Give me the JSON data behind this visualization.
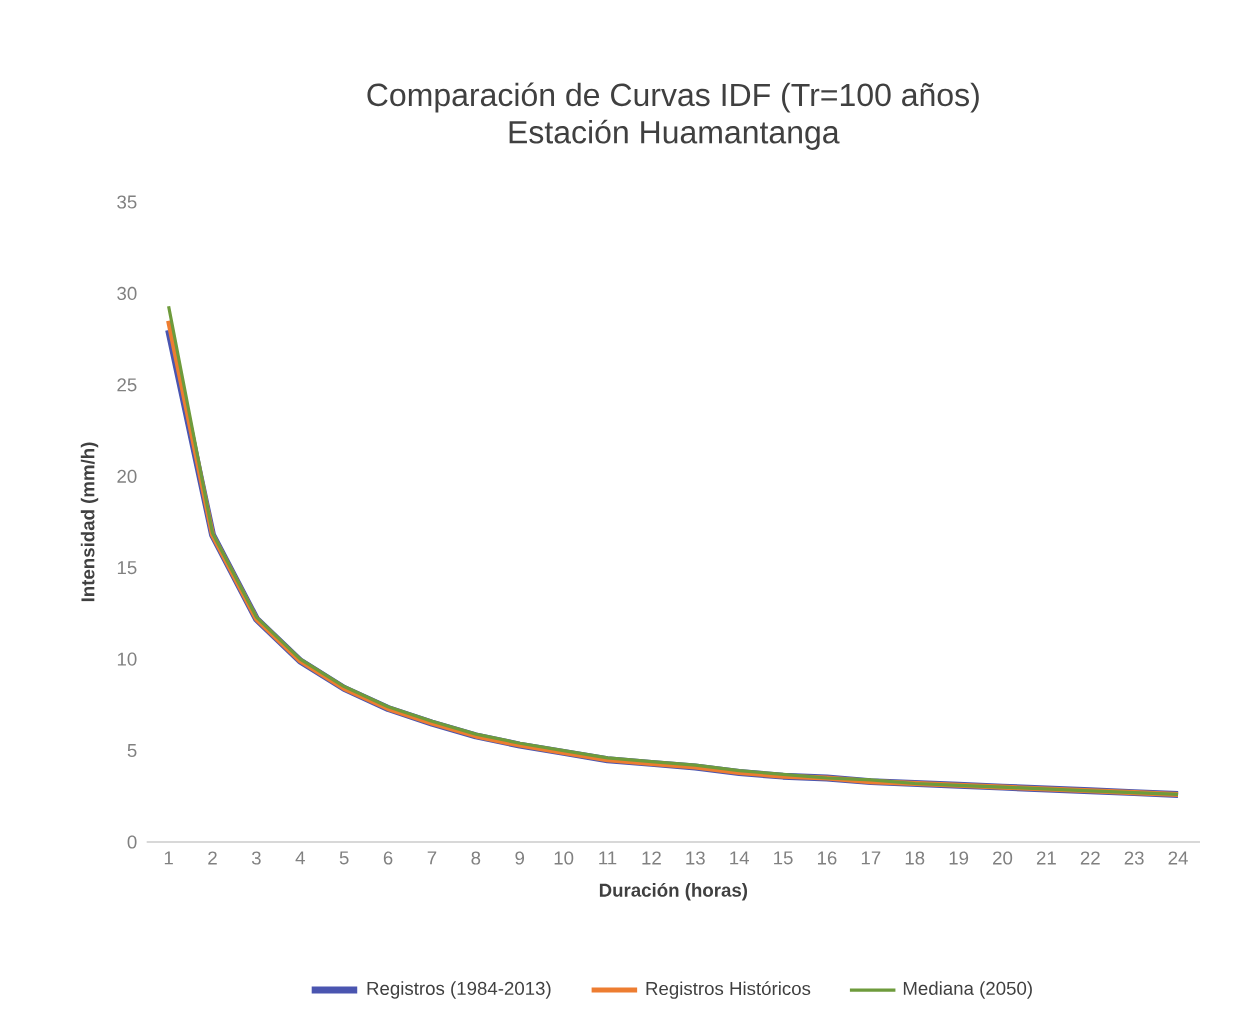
{
  "chart_data": {
    "type": "line",
    "title": "Comparación de Curvas IDF (Tr=100 años)",
    "subtitle": "Estación Huamantanga",
    "xlabel": "Duración (horas)",
    "ylabel": "Intensidad (mm/h)",
    "categories": [
      "1",
      "2",
      "3",
      "4",
      "5",
      "6",
      "7",
      "8",
      "9",
      "10",
      "11",
      "12",
      "13",
      "14",
      "15",
      "16",
      "17",
      "18",
      "19",
      "20",
      "21",
      "22",
      "23",
      "24"
    ],
    "ylim": [
      0,
      35
    ],
    "yticks": [
      0,
      5,
      10,
      15,
      20,
      25,
      30,
      35
    ],
    "legend": "bottom",
    "grid": false,
    "series": [
      {
        "name": "Registros (1984-2013)",
        "color": "#4a55b0",
        "values": [
          28.0,
          16.8,
          12.2,
          9.9,
          8.4,
          7.3,
          6.5,
          5.8,
          5.3,
          4.9,
          4.5,
          4.3,
          4.1,
          3.8,
          3.6,
          3.5,
          3.3,
          3.2,
          3.1,
          3.0,
          2.9,
          2.8,
          2.7,
          2.6
        ]
      },
      {
        "name": "Registros Históricos",
        "color": "#ed7d31",
        "values": [
          28.5,
          16.8,
          12.2,
          9.9,
          8.4,
          7.3,
          6.5,
          5.8,
          5.3,
          4.9,
          4.5,
          4.3,
          4.1,
          3.8,
          3.6,
          3.5,
          3.3,
          3.2,
          3.1,
          3.0,
          2.9,
          2.8,
          2.7,
          2.6
        ]
      },
      {
        "name": "Mediana (2050)",
        "color": "#6e9b3c",
        "values": [
          29.3,
          16.9,
          12.3,
          10.0,
          8.5,
          7.4,
          6.6,
          5.9,
          5.4,
          5.0,
          4.6,
          4.4,
          4.2,
          3.9,
          3.7,
          3.5,
          3.4,
          3.2,
          3.1,
          3.0,
          2.9,
          2.8,
          2.7,
          2.6
        ]
      }
    ]
  }
}
